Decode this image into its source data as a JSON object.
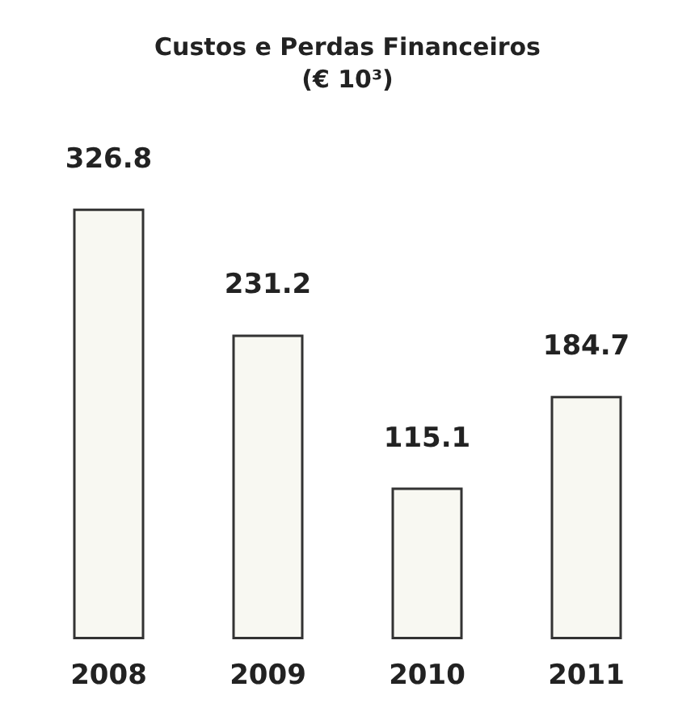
{
  "chart_data": {
    "type": "bar",
    "title": "Custos e Perdas Financeiros\n(€ 10³)",
    "categories": [
      "2008",
      "2009",
      "2010",
      "2011"
    ],
    "values": [
      326.8,
      231.2,
      115.1,
      184.7
    ],
    "color": "#f8f8f2",
    "data_labels": true
  }
}
